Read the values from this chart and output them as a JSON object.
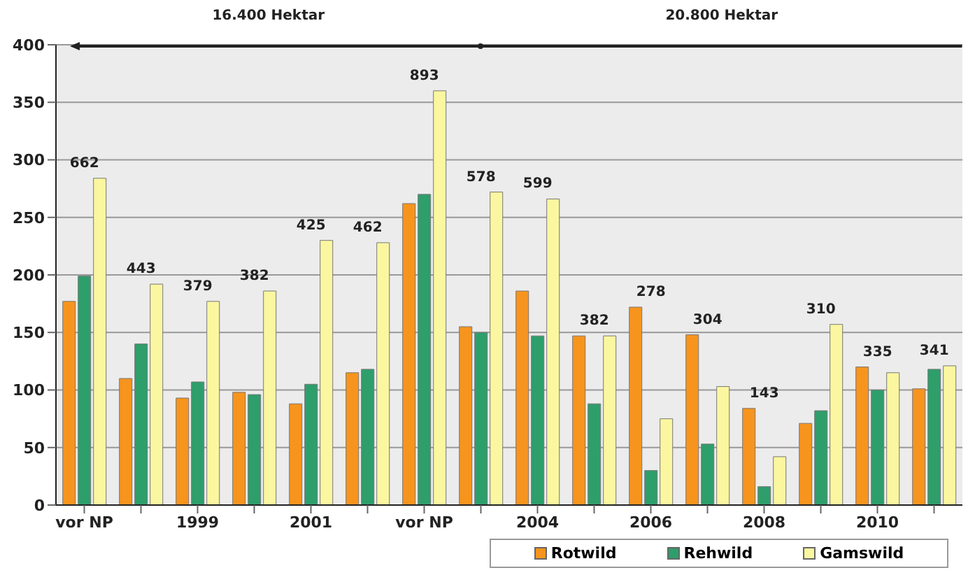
{
  "chart_data": {
    "type": "bar",
    "categories": [
      "vor NP",
      null,
      "1999",
      null,
      "2001",
      null,
      "vor NP",
      null,
      "2004",
      null,
      "2006",
      null,
      "2008",
      null,
      "2010",
      null
    ],
    "series": [
      {
        "name": "Rotwild",
        "color": "#f7941d",
        "values": [
          177,
          110,
          93,
          98,
          88,
          115,
          262,
          155,
          186,
          147,
          172,
          148,
          84,
          71,
          120,
          101
        ]
      },
      {
        "name": "Rehwild",
        "color": "#2e9e6b",
        "values": [
          199,
          140,
          107,
          96,
          105,
          118,
          270,
          150,
          147,
          88,
          30,
          53,
          16,
          82,
          100,
          118
        ]
      },
      {
        "name": "Gamswild",
        "color": "#fbf7a0",
        "values": [
          284,
          192,
          177,
          186,
          230,
          228,
          360,
          272,
          266,
          147,
          75,
          103,
          42,
          157,
          115,
          121
        ]
      }
    ],
    "totals": [
      "662",
      "443",
      "379",
      "382",
      "425",
      "462",
      "893",
      "578",
      "599",
      "382",
      "278",
      "304",
      "143",
      "310",
      "335",
      "341"
    ],
    "annotations": [
      "16.400 Hektar",
      "20.800 Hektar"
    ],
    "ylim": [
      0,
      400
    ],
    "yticks": [
      0,
      50,
      100,
      150,
      200,
      250,
      300,
      350,
      400
    ],
    "grid": "y",
    "legend": "bottom"
  }
}
